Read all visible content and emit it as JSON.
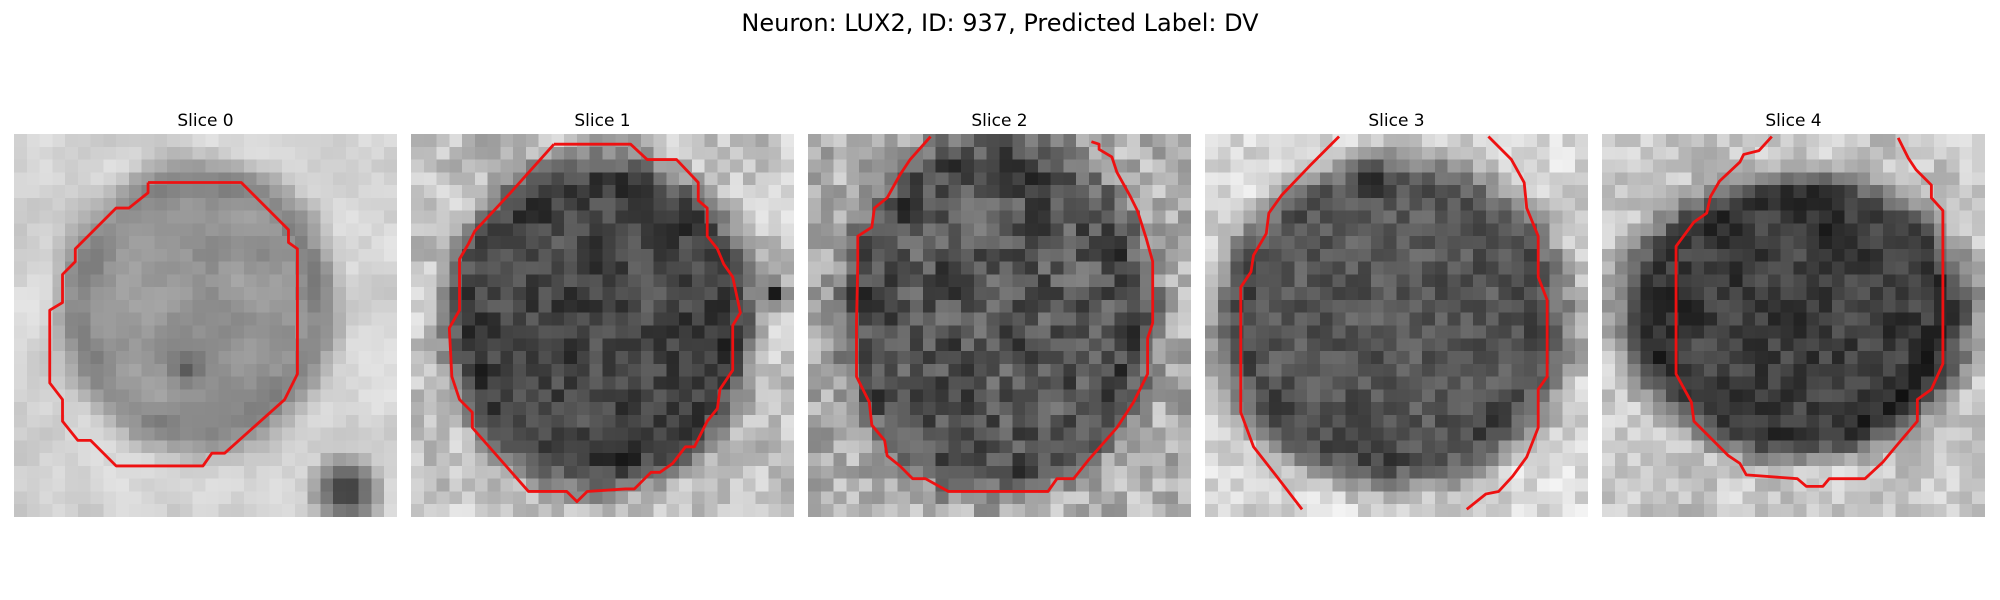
{
  "figure": {
    "title": "Neuron: LUX2, ID: 937, Predicted Label: DV"
  },
  "slices": [
    {
      "title": "Slice 0",
      "image": "grayscale EM patch with red cell contour"
    },
    {
      "title": "Slice 1",
      "image": "grayscale EM patch with red cell contour"
    },
    {
      "title": "Slice 2",
      "image": "grayscale EM patch with red cell contour"
    },
    {
      "title": "Slice 3",
      "image": "grayscale EM patch with red cell contour"
    },
    {
      "title": "Slice 4",
      "image": "grayscale EM patch with red cell contour"
    }
  ],
  "colors": {
    "contour": "#ee1111",
    "background": "#ffffff"
  }
}
